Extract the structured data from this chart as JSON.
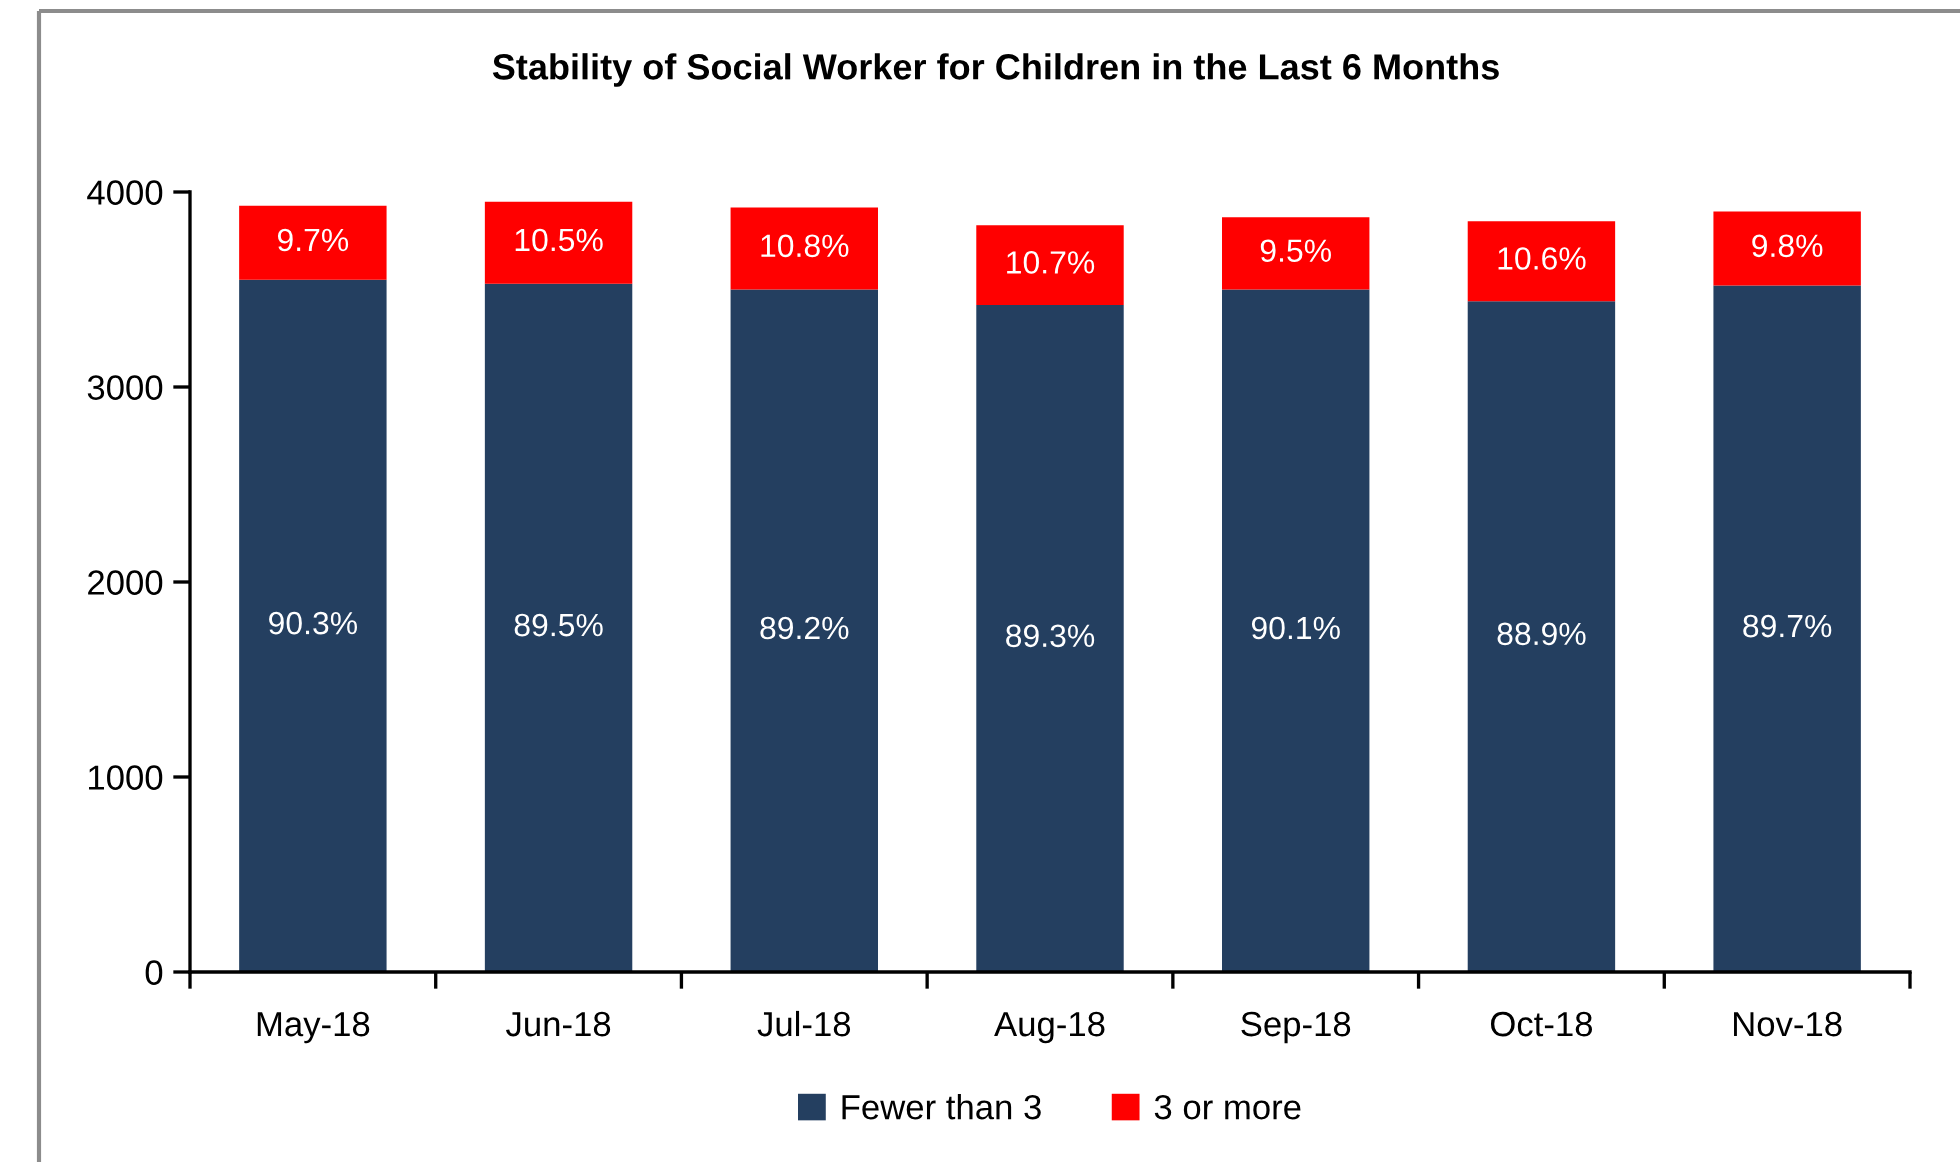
{
  "chart_data": {
    "type": "bar",
    "title": "Stability of Social Worker for Children in the Last 6 Months",
    "categories": [
      "May-18",
      "Jun-18",
      "Jul-18",
      "Aug-18",
      "Sep-18",
      "Oct-18",
      "Nov-18"
    ],
    "stacked": true,
    "series": [
      {
        "name": "Fewer than 3",
        "color": "#243f60",
        "values": [
          3550,
          3530,
          3500,
          3420,
          3500,
          3440,
          3520
        ]
      },
      {
        "name": "3 or more",
        "color": "#ff0000",
        "values": [
          380,
          420,
          420,
          410,
          370,
          410,
          380
        ]
      }
    ],
    "annotations": [
      "90.3%",
      "89.5%",
      "89.2%",
      "89.3%",
      "90.1%",
      "88.9%",
      "89.7%",
      "9.7%",
      "10.5%",
      "10.8%",
      "10.7%",
      "9.5%",
      "10.6%",
      "9.8%"
    ],
    "ylim": [
      0,
      4000
    ],
    "yticks": [
      0,
      1000,
      2000,
      3000,
      4000
    ],
    "grid": false,
    "legend": "bottom"
  }
}
